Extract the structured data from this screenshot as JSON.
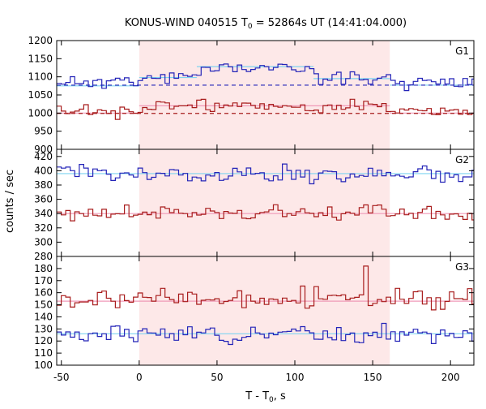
{
  "chart_data": {
    "type": "line",
    "title": {
      "prefix": "KONUS-WIND 040515 T",
      "sub": "0",
      "suffix": " = 52864s UT (14:41:04.000)"
    },
    "xlabel": {
      "prefix": "T - T",
      "sub": "0",
      "suffix": ", s"
    },
    "ylabel": "counts / sec",
    "xlim": [
      -53,
      215
    ],
    "xticks": [
      -50,
      0,
      50,
      100,
      150,
      200
    ],
    "shaded_interval": {
      "x": [
        0,
        161
      ],
      "color": "#fde8e8"
    },
    "colors": {
      "blue": "#2424b8",
      "red": "#a81c1c",
      "fit_blue": "#7fd4f0",
      "fit_red": "#f09ab8"
    },
    "grid": false,
    "panels": [
      {
        "label": "G1",
        "ylim": [
          900,
          1200
        ],
        "yticks": [
          900,
          950,
          1000,
          1050,
          1100,
          1150,
          1200
        ],
        "upper": {
          "color": "blue",
          "base": 1085,
          "noise": 12,
          "burst": [
            [
              37,
              112,
              40
            ],
            [
              0,
              37,
              15
            ],
            [
              112,
              161,
              12
            ]
          ],
          "seed": 11
        },
        "lower": {
          "color": "red",
          "base": 1003,
          "noise": 12,
          "burst": [
            [
              5,
              161,
              18
            ]
          ],
          "seed": 23
        },
        "fits": [
          {
            "color": "fit_blue",
            "segments": [
              [
                -53,
                0,
                1075
              ],
              [
                0,
                37,
                1098
              ],
              [
                37,
                112,
                1128
              ],
              [
                112,
                161,
                1095
              ],
              [
                161,
                215,
                1077
              ]
            ]
          },
          {
            "color": "fit_red",
            "segments": [
              [
                -53,
                0,
                1000
              ],
              [
                0,
                161,
                1020
              ],
              [
                161,
                215,
                1000
              ]
            ]
          }
        ],
        "dashed": [
          {
            "color": "blue",
            "y": 1077
          },
          {
            "color": "red",
            "y": 999
          }
        ]
      },
      {
        "label": "G2",
        "ylim": [
          280,
          430
        ],
        "yticks": [
          280,
          300,
          320,
          340,
          360,
          380,
          400,
          420
        ],
        "upper": {
          "color": "blue",
          "base": 395,
          "noise": 9,
          "burst": [],
          "seed": 37
        },
        "lower": {
          "color": "red",
          "base": 340,
          "noise": 8,
          "burst": [],
          "seed": 41
        },
        "fits": [
          {
            "color": "fit_blue",
            "segments": [
              [
                -53,
                215,
                396
              ]
            ]
          },
          {
            "color": "fit_red",
            "segments": [
              [
                -53,
                215,
                340
              ]
            ]
          }
        ],
        "dashed": []
      },
      {
        "label": "G3",
        "ylim": [
          100,
          190
        ],
        "yticks": [
          100,
          110,
          120,
          130,
          140,
          150,
          160,
          170,
          180
        ],
        "upper": {
          "color": "red",
          "base": 155,
          "noise": 6,
          "burst": [],
          "seed": 53,
          "spike": [
            143,
            182
          ]
        },
        "lower": {
          "color": "blue",
          "base": 126,
          "noise": 5,
          "burst": [],
          "seed": 67
        },
        "fits": [
          {
            "color": "fit_red",
            "segments": [
              [
                -53,
                215,
                153
              ]
            ]
          },
          {
            "color": "fit_blue",
            "segments": [
              [
                -53,
                215,
                126
              ]
            ]
          }
        ],
        "dashed": []
      }
    ]
  }
}
